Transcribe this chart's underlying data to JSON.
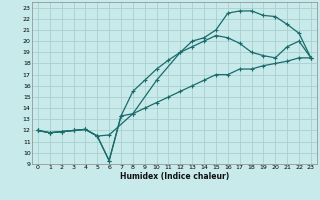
{
  "xlabel": "Humidex (Indice chaleur)",
  "bg_color": "#c8eaea",
  "grid_color": "#aacfcf",
  "line_color": "#1a6b6b",
  "xlim": [
    -0.5,
    23.5
  ],
  "ylim": [
    9,
    23.5
  ],
  "yticks": [
    9,
    10,
    11,
    12,
    13,
    14,
    15,
    16,
    17,
    18,
    19,
    20,
    21,
    22,
    23
  ],
  "xticks": [
    0,
    1,
    2,
    3,
    4,
    5,
    6,
    7,
    8,
    9,
    10,
    11,
    12,
    13,
    14,
    15,
    16,
    17,
    18,
    19,
    20,
    21,
    22,
    23
  ],
  "line_top_x": [
    0,
    1,
    2,
    3,
    4,
    5,
    6,
    8,
    10,
    12,
    13,
    14,
    15,
    16,
    17,
    18,
    19,
    20,
    21,
    22,
    23
  ],
  "line_top_y": [
    12,
    11.8,
    11.9,
    12,
    12.1,
    11.5,
    11.6,
    13.5,
    16.5,
    19,
    20,
    20.3,
    21.0,
    22.5,
    22.7,
    22.7,
    22.3,
    22.2,
    21.5,
    20.7,
    18.5
  ],
  "line_mid_x": [
    0,
    1,
    2,
    3,
    4,
    5,
    6,
    7,
    8,
    9,
    10,
    11,
    12,
    13,
    14,
    15,
    16,
    17,
    18,
    19,
    20,
    21,
    22,
    23
  ],
  "line_mid_y": [
    12,
    11.8,
    11.9,
    12,
    12.1,
    11.5,
    9.3,
    13.3,
    15.5,
    16.5,
    17.5,
    18.3,
    19.0,
    19.5,
    20.0,
    20.5,
    20.3,
    19.8,
    19.0,
    18.7,
    18.5,
    19.5,
    20.0,
    18.5
  ],
  "line_diag_x": [
    0,
    1,
    2,
    3,
    4,
    5,
    6,
    7,
    8,
    9,
    10,
    11,
    12,
    13,
    14,
    15,
    16,
    17,
    18,
    19,
    20,
    21,
    22,
    23
  ],
  "line_diag_y": [
    12,
    11.8,
    11.9,
    12,
    12.1,
    11.5,
    9.3,
    13.3,
    13.5,
    14.0,
    14.5,
    15.0,
    15.5,
    16.0,
    16.5,
    17.0,
    17.0,
    17.5,
    17.5,
    17.8,
    18.0,
    18.2,
    18.5,
    18.5
  ]
}
